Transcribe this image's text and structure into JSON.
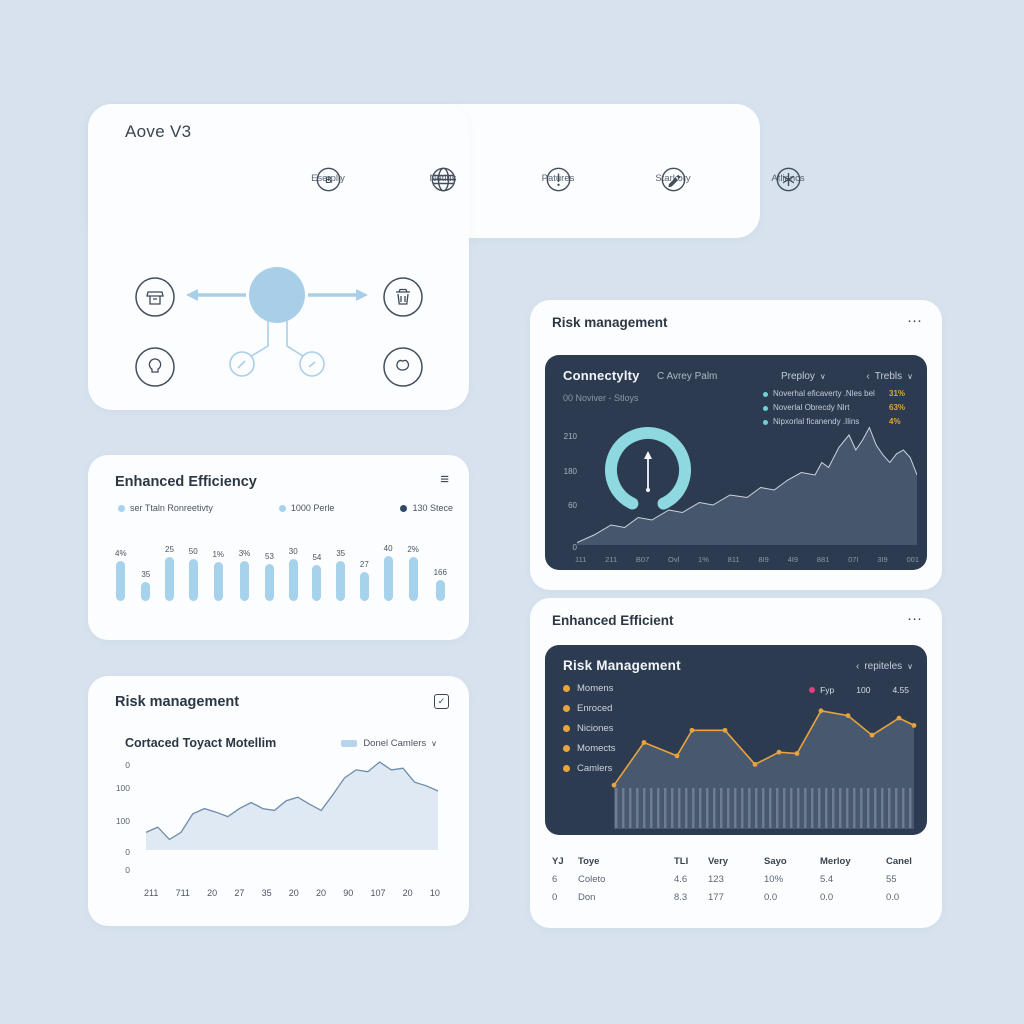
{
  "glyphs": {
    "hamburger": "≡",
    "ellipsis": "···",
    "check": "✓",
    "chevron_down": "∨",
    "chevron_left": "‹"
  },
  "colors": {
    "background": "#d7e2ee",
    "card": "#fcfdfe",
    "dark_panel": "#2d3b51",
    "accent_teal": "#6fd0d8",
    "accent_orange": "#e2a242",
    "accent_pink": "#e0407f",
    "bar_blue": "#a7d2ec",
    "diagram_blue": "#a9cfe8"
  },
  "hero": {
    "title": "Aove V3",
    "nav_items": [
      {
        "icon": "badge-b-icon",
        "glyph": "B",
        "label": "Eserplly"
      },
      {
        "icon": "globe-icon",
        "label": "Netins"
      },
      {
        "icon": "alert-icon",
        "label": "Patures"
      },
      {
        "icon": "pen-icon",
        "label": "Starkory"
      },
      {
        "icon": "asterisk-icon",
        "label": "Atliancs"
      }
    ]
  },
  "efficiency_card": {
    "title": "Enhanced Efficiency",
    "legend": [
      {
        "label": "ser Ttaln Ronreetivty",
        "color": "#a7d2ec"
      },
      {
        "label": "1000 Perle",
        "color": "#a7d2ec"
      },
      {
        "label": "130 Stece",
        "color": "#2e4a66"
      }
    ],
    "chart_data": {
      "type": "bar",
      "value_labels": [
        "4%",
        "35",
        "25",
        "50",
        "1%",
        "3%",
        "53",
        "30",
        "54",
        "35",
        "27",
        "40",
        "2%",
        "166"
      ],
      "bar_heights_pct": [
        88,
        42,
        96,
        92,
        84,
        88,
        80,
        92,
        78,
        88,
        64,
        98,
        96,
        46
      ],
      "bar_color": "#a7d2ec"
    }
  },
  "risk_left_card": {
    "title": "Risk management",
    "chart_title": "Cortaced Toyact Motellim",
    "series_selector": {
      "label": "Donel Camlers",
      "swatch_color": "#b8d4ea"
    },
    "chart_data": {
      "type": "area",
      "y_ticks": [
        "0",
        "100",
        "100",
        "0",
        "0"
      ],
      "x_labels": [
        "211",
        "711",
        "20",
        "27",
        "35",
        "20",
        "20",
        "90",
        "107",
        "20",
        "10"
      ],
      "values": [
        20,
        26,
        12,
        20,
        41,
        47,
        43,
        38,
        47,
        54,
        47,
        45,
        56,
        60,
        52,
        45,
        63,
        82,
        91,
        89,
        100,
        91,
        93,
        77,
        73,
        67
      ],
      "line_color": "#6d8cab",
      "fill_color": "#dfe9f3"
    }
  },
  "risk_right_card": {
    "title": "Risk management",
    "panel": {
      "title": "Connectylty",
      "subtitle_inline": "C Avrey Palm",
      "dropdown_1": "Preploy",
      "dropdown_2": "Trebls",
      "range_label": "00 Noviver - Stloys",
      "legend": [
        {
          "label": "Noverhal eficaverty .Nles bel",
          "value": "31%"
        },
        {
          "label": "Noverlal Obrecdy Nlrt",
          "value": "63%"
        },
        {
          "label": "Nipxorlal ficanendy .Ilins",
          "value": "4%"
        }
      ],
      "gauge": {
        "color": "#8ed8e0"
      },
      "chart_data": {
        "type": "area",
        "y_ticks": [
          "210",
          "180",
          "60",
          "0"
        ],
        "x_labels": [
          "111",
          "211",
          "B07",
          "Ovl",
          "1%",
          "811",
          "8I9",
          "4I9",
          "881",
          "07I",
          "3I9",
          "001"
        ],
        "points": [
          [
            0,
            2
          ],
          [
            5,
            8
          ],
          [
            10,
            16
          ],
          [
            14,
            14
          ],
          [
            18,
            22
          ],
          [
            22,
            20
          ],
          [
            27,
            28
          ],
          [
            31,
            26
          ],
          [
            36,
            34
          ],
          [
            40,
            32
          ],
          [
            45,
            40
          ],
          [
            50,
            38
          ],
          [
            54,
            46
          ],
          [
            58,
            44
          ],
          [
            62,
            52
          ],
          [
            66,
            58
          ],
          [
            70,
            56
          ],
          [
            72,
            66
          ],
          [
            74,
            62
          ],
          [
            77,
            78
          ],
          [
            80,
            88
          ],
          [
            82,
            76
          ],
          [
            84,
            84
          ],
          [
            86,
            94
          ],
          [
            88,
            80
          ],
          [
            90,
            72
          ],
          [
            92,
            66
          ],
          [
            94,
            73
          ],
          [
            96,
            76
          ],
          [
            98,
            70
          ],
          [
            100,
            56
          ]
        ],
        "fill_color": "#46566c",
        "line_color": "#ccd4df"
      }
    }
  },
  "efficient_right_card": {
    "title": "Enhanced Efficient",
    "panel": {
      "title": "Risk Management",
      "dropdown": "repiteles",
      "legend": [
        "Momens",
        "Enroced",
        "Niciones",
        "Momects",
        "Camlers"
      ],
      "mini_legend": {
        "series": "Fyp",
        "value_1": "100",
        "value_2": "4.55"
      },
      "chart_data": {
        "type": "line",
        "points": [
          [
            0,
            31
          ],
          [
            10,
            66
          ],
          [
            21,
            55
          ],
          [
            26,
            76
          ],
          [
            37,
            76
          ],
          [
            47,
            48
          ],
          [
            55,
            58
          ],
          [
            61,
            57
          ],
          [
            69,
            92
          ],
          [
            78,
            88
          ],
          [
            86,
            72
          ],
          [
            95,
            86
          ],
          [
            100,
            80
          ]
        ],
        "line_color": "#e8a33d",
        "area_color": "#48586e"
      }
    },
    "table": {
      "headers": [
        "YJ",
        "Toye",
        "TLI",
        "Very",
        "Sayo",
        "Merloy",
        "Canel"
      ],
      "rows": [
        [
          "6",
          "Coleto",
          "4.6",
          "123",
          "10%",
          "5.4",
          "55"
        ],
        [
          "0",
          "Don",
          "8.3",
          "177",
          "0.0",
          "0.0",
          "0.0"
        ]
      ]
    }
  }
}
